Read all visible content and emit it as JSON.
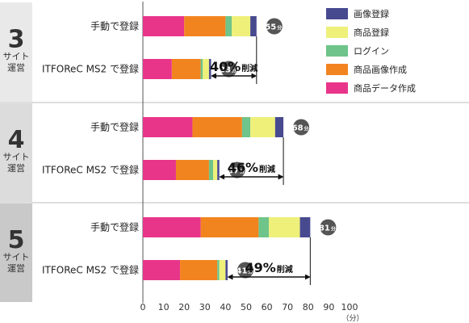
{
  "chart_data": {
    "type": "bar",
    "orientation": "horizontal",
    "stacked": true,
    "xlim": [
      0,
      100
    ],
    "xticks": [
      "0",
      "10",
      "20",
      "30",
      "40",
      "50",
      "60",
      "70",
      "80",
      "90",
      "100"
    ],
    "xunit": "（分）",
    "series": [
      {
        "name": "商品データ作成",
        "color": "#e8358a"
      },
      {
        "name": "商品画像作成",
        "color": "#f2841f"
      },
      {
        "name": "ログイン",
        "color": "#6ec48a"
      },
      {
        "name": "商品登録",
        "color": "#eef07a"
      },
      {
        "name": "画像登録",
        "color": "#474a8f"
      }
    ],
    "groups": [
      {
        "number": "3",
        "line1": "サイト",
        "line2": "運営",
        "reduction_pct": "40%",
        "reduction_suffix": "削減",
        "bars": [
          {
            "label": "手動で登録",
            "values": [
              20,
              20,
              3,
              9,
              3
            ],
            "total": "55",
            "total_unit": "分"
          },
          {
            "label": "ITFOReC MS2 で登録",
            "values": [
              14,
              14,
              1,
              3,
              1
            ],
            "total": "33",
            "total_unit": "分"
          }
        ]
      },
      {
        "number": "4",
        "line1": "サイト",
        "line2": "運営",
        "reduction_pct": "46%",
        "reduction_suffix": "削減",
        "bars": [
          {
            "label": "手動で登録",
            "values": [
              24,
              24,
              4,
              12,
              4
            ],
            "total": "68",
            "total_unit": "分"
          },
          {
            "label": "ITFOReC MS2 で登録",
            "values": [
              16,
              16,
              2,
              2,
              1
            ],
            "total": "37",
            "total_unit": "分"
          }
        ]
      },
      {
        "number": "5",
        "line1": "サイト",
        "line2": "運営",
        "reduction_pct": "49%",
        "reduction_suffix": "削減",
        "bars": [
          {
            "label": "手動で登録",
            "values": [
              28,
              28,
              5,
              15,
              5
            ],
            "total": "81",
            "total_unit": "分"
          },
          {
            "label": "ITFOReC MS2 で登録",
            "values": [
              18,
              18,
              1,
              3,
              1
            ],
            "total": "41",
            "total_unit": "分"
          }
        ]
      }
    ],
    "legend_position": "top-right",
    "legend_order": [
      "画像登録",
      "商品登録",
      "ログイン",
      "商品画像作成",
      "商品データ作成"
    ]
  }
}
